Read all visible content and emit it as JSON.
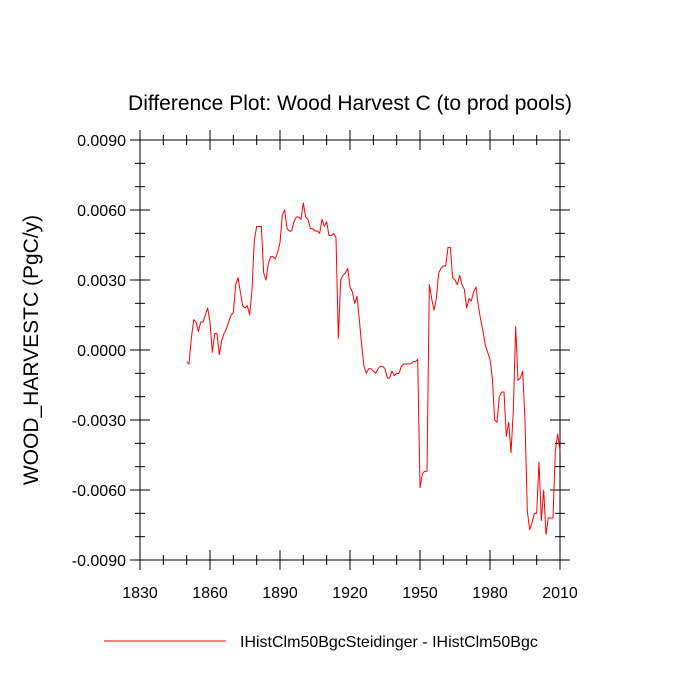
{
  "chart_data": {
    "type": "line",
    "title": "Difference Plot: Wood Harvest C (to prod pools)",
    "xlabel": "",
    "ylabel": "WOOD_HARVESTC  (PgC/y)",
    "xlim": [
      1830,
      2010
    ],
    "ylim": [
      -0.009,
      0.009
    ],
    "xticks": [
      1830,
      1860,
      1890,
      1920,
      1950,
      1980,
      2010
    ],
    "xtick_labels": [
      "1830",
      "1860",
      "1890",
      "1920",
      "1950",
      "1980",
      "2010"
    ],
    "yticks": [
      -0.009,
      -0.006,
      -0.003,
      0.0,
      0.003,
      0.006,
      0.009
    ],
    "ytick_labels": [
      "-0.0090",
      "-0.0060",
      "-0.0030",
      "0.0000",
      "0.0030",
      "0.0060",
      "0.0090"
    ],
    "grid": false,
    "legend_position": "bottom",
    "series": [
      {
        "name": "IHistClm50BgcSteidinger - IHistClm50Bgc",
        "color": "#ff0000",
        "x": [
          1850,
          1851,
          1852,
          1853,
          1854,
          1855,
          1856,
          1857,
          1858,
          1859,
          1860,
          1861,
          1862,
          1863,
          1864,
          1865,
          1866,
          1867,
          1868,
          1869,
          1870,
          1871,
          1872,
          1873,
          1874,
          1875,
          1876,
          1877,
          1878,
          1879,
          1880,
          1881,
          1882,
          1883,
          1884,
          1885,
          1886,
          1887,
          1888,
          1889,
          1890,
          1891,
          1892,
          1893,
          1894,
          1895,
          1896,
          1897,
          1898,
          1899,
          1900,
          1901,
          1902,
          1903,
          1904,
          1905,
          1906,
          1907,
          1908,
          1909,
          1910,
          1911,
          1912,
          1913,
          1914,
          1915,
          1916,
          1917,
          1918,
          1919,
          1920,
          1921,
          1922,
          1923,
          1924,
          1925,
          1926,
          1927,
          1928,
          1929,
          1930,
          1931,
          1932,
          1933,
          1934,
          1935,
          1936,
          1937,
          1938,
          1939,
          1940,
          1941,
          1942,
          1943,
          1944,
          1945,
          1946,
          1947,
          1948,
          1949,
          1950,
          1951,
          1952,
          1953,
          1954,
          1955,
          1956,
          1957,
          1958,
          1959,
          1960,
          1961,
          1962,
          1963,
          1964,
          1965,
          1966,
          1967,
          1968,
          1969,
          1970,
          1971,
          1972,
          1973,
          1974,
          1975,
          1976,
          1977,
          1978,
          1979,
          1980,
          1981,
          1982,
          1983,
          1984,
          1985,
          1986,
          1987,
          1988,
          1989,
          1990,
          1991,
          1992,
          1993,
          1994,
          1995,
          1996,
          1997,
          1998,
          1999,
          2000,
          2001,
          2002,
          2003,
          2004,
          2005,
          2006,
          2007,
          2008,
          2009,
          2010
        ],
        "y": [
          -0.0005,
          -0.0006,
          0.0005,
          0.0013,
          0.0012,
          0.0008,
          0.0012,
          0.0012,
          0.0015,
          0.0018,
          0.0012,
          -0.0001,
          0.0007,
          0.0007,
          -0.0002,
          0.0004,
          0.0007,
          0.0009,
          0.0012,
          0.0015,
          0.0016,
          0.0028,
          0.0031,
          0.0025,
          0.0019,
          0.0018,
          0.0019,
          0.0015,
          0.0026,
          0.0047,
          0.0053,
          0.0053,
          0.0053,
          0.0033,
          0.003,
          0.0037,
          0.004,
          0.004,
          0.0039,
          0.0042,
          0.0046,
          0.0058,
          0.006,
          0.0052,
          0.0051,
          0.0051,
          0.0055,
          0.0057,
          0.0057,
          0.0056,
          0.0063,
          0.0057,
          0.0056,
          0.0052,
          0.0052,
          0.0051,
          0.0051,
          0.005,
          0.0056,
          0.0053,
          0.0055,
          0.0049,
          0.0049,
          0.005,
          0.0048,
          0.0005,
          0.003,
          0.0032,
          0.0033,
          0.0035,
          0.0027,
          0.0025,
          0.002,
          0.0023,
          0.0013,
          0.0002,
          -0.0007,
          -0.001,
          -0.0008,
          -0.0008,
          -0.0009,
          -0.001,
          -0.0008,
          -0.0007,
          -0.0007,
          -0.0008,
          -0.0012,
          -0.0012,
          -0.0009,
          -0.0011,
          -0.001,
          -0.001,
          -0.0007,
          -0.0006,
          -0.0006,
          -0.0006,
          -0.0006,
          -0.0005,
          -0.0005,
          -0.0004,
          -0.0059,
          -0.0053,
          -0.0052,
          -0.0052,
          0.0028,
          0.0022,
          0.0017,
          0.0022,
          0.0033,
          0.0035,
          0.0036,
          0.0036,
          0.0044,
          0.0044,
          0.0031,
          0.003,
          0.0028,
          0.0032,
          0.0028,
          0.0026,
          0.0018,
          0.0022,
          0.0021,
          0.0025,
          0.0027,
          0.0019,
          0.0013,
          0.0008,
          0.0002,
          -0.0001,
          -0.0004,
          -0.0012,
          -0.003,
          -0.0031,
          -0.002,
          -0.0018,
          -0.0018,
          -0.0037,
          -0.0031,
          -0.0044,
          -0.0026,
          0.001,
          -0.0013,
          -0.0012,
          -0.0009,
          -0.003,
          -0.0069,
          -0.0077,
          -0.0074,
          -0.007,
          -0.007,
          -0.0048,
          -0.0073,
          -0.006,
          -0.0079,
          -0.0072,
          -0.0072,
          -0.0072,
          -0.0043,
          -0.0036,
          -0.0043
        ]
      }
    ]
  }
}
